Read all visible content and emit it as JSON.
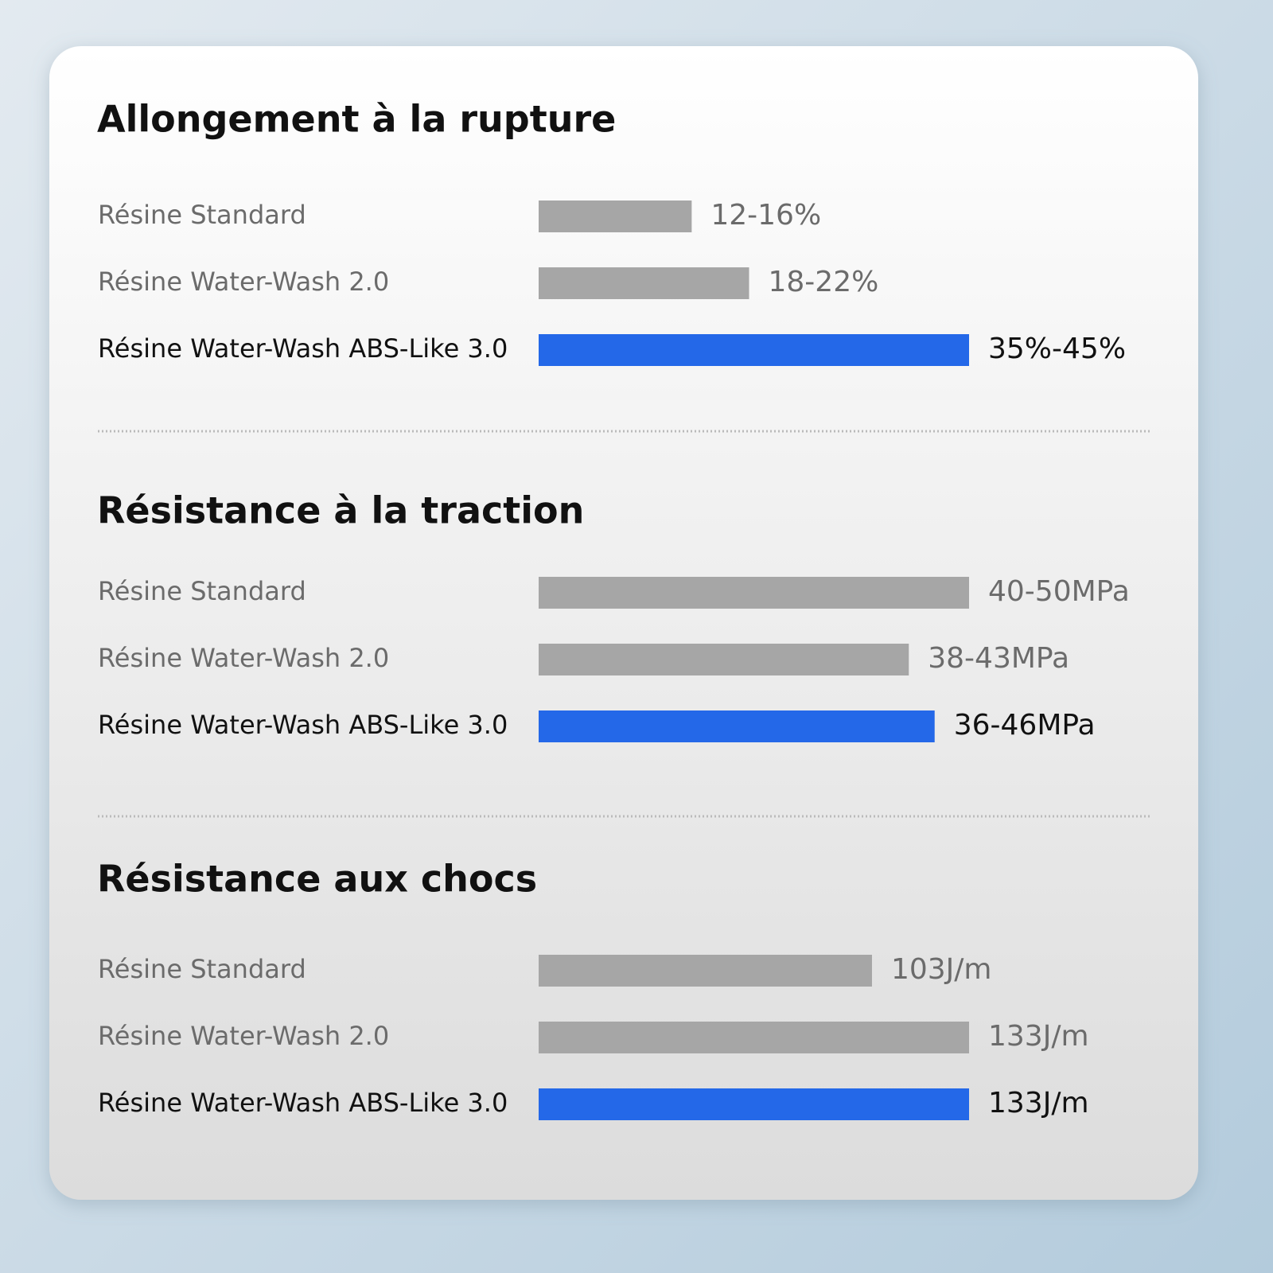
{
  "chart_data": [
    {
      "type": "bar",
      "orientation": "horizontal",
      "title": "Allongement à la rupture",
      "categories": [
        "Résine Standard",
        "Résine Water-Wash 2.0",
        "Résine Water-Wash ABS-Like 3.0"
      ],
      "values": [
        16,
        22,
        45
      ],
      "value_labels": [
        "12-16%",
        "18-22%",
        "35%-45%"
      ],
      "colors": [
        "#a6a6a6",
        "#a6a6a6",
        "#2468e8"
      ]
    },
    {
      "type": "bar",
      "orientation": "horizontal",
      "title": "Résistance à la traction",
      "categories": [
        "Résine Standard",
        "Résine Water-Wash 2.0",
        "Résine Water-Wash ABS-Like 3.0"
      ],
      "values": [
        50,
        43,
        46
      ],
      "value_labels": [
        "40-50MPa",
        "38-43MPa",
        "36-46MPa"
      ],
      "colors": [
        "#a6a6a6",
        "#a6a6a6",
        "#2468e8"
      ]
    },
    {
      "type": "bar",
      "orientation": "horizontal",
      "title": "Résistance aux chocs",
      "categories": [
        "Résine Standard",
        "Résine Water-Wash 2.0",
        "Résine Water-Wash ABS-Like 3.0"
      ],
      "values": [
        103,
        133,
        133
      ],
      "value_labels": [
        "103J/m",
        "133J/m",
        "133J/m"
      ],
      "colors": [
        "#a6a6a6",
        "#a6a6a6",
        "#2468e8"
      ]
    }
  ]
}
